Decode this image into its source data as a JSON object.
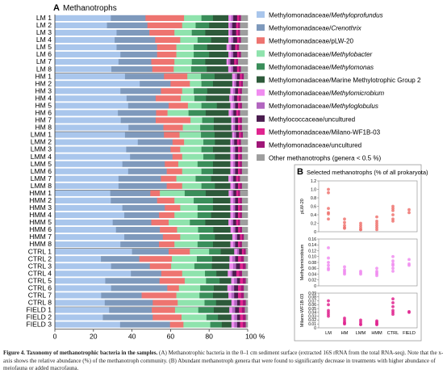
{
  "panel_a": {
    "letter": "A",
    "title": "Methanotrophs",
    "x_tick_labels": [
      "0",
      "20",
      "40",
      "60",
      "80",
      "100 %"
    ]
  },
  "panel_b": {
    "letter": "B",
    "title": "Selected methanotrophs (% of all prokaryota)"
  },
  "caption": {
    "lead": "Figure 4. Taxonomy of methanotrophic bacteria in the samples.",
    "body": " (A) Methanotrophic bacteria in the 0–1 cm sediment surface (extracted 16S rRNA from the total RNA-seq). Note that the x-axis shows the relative abundance (%) of the methanotroph community. (B) Abundant methanotroph genera that were found to significantly decrease in treatments with higher abundance of meiofauna or added macrofauna."
  },
  "colors": [
    "#a9c6ec",
    "#7e99bc",
    "#ee7470",
    "#8fe3ad",
    "#3a8e5a",
    "#2d5a3a",
    "#f08cf0",
    "#b266c0",
    "#4a1c4e",
    "#e0248f",
    "#a01678",
    "#9e9e9e"
  ],
  "chart_data": [
    {
      "type": "bar",
      "orientation": "horizontal",
      "stacked": true,
      "title": "Methanotrophs",
      "xlim": [
        0,
        100
      ],
      "x_unit": "%",
      "categories": [
        "LM 1",
        "LM 2",
        "LM 3",
        "LM 4",
        "LM 5",
        "LM 6",
        "LM 7",
        "LM 8",
        "HM 1",
        "HM 2",
        "HM 3",
        "HM 4",
        "HM 5",
        "HM 6",
        "HM 7",
        "HM 8",
        "LMM 1",
        "LMM 2",
        "LMM 3",
        "LMM 4",
        "LMM 5",
        "LMM 6",
        "LMM 7",
        "LMM 8",
        "HMM 1",
        "HMM 2",
        "HMM 3",
        "HMM 4",
        "HMM 5",
        "HMM 6",
        "HMM 7",
        "HMM 8",
        "CTRL 1",
        "CTRL 2",
        "CTRL 3",
        "CTRL 4",
        "CTRL 5",
        "CTRL 6",
        "CTRL 7",
        "CTRL 8",
        "FIELD 1",
        "FIELD 2",
        "FIELD 3"
      ],
      "legend_position": "right",
      "series": [
        {
          "name": "Methylomonadaceae/",
          "italic": "Methyloprofundus",
          "values": [
            29,
            27,
            32,
            31,
            32,
            34,
            33,
            29,
            36,
            44,
            34,
            37,
            38,
            33,
            34,
            38,
            36,
            43,
            37,
            39,
            35,
            38,
            33,
            33,
            29,
            29,
            35,
            36,
            30,
            32,
            36,
            34,
            40,
            24,
            29,
            40,
            26,
            29,
            24,
            26,
            28,
            25,
            34
          ]
        },
        {
          "name": "Methylomonadaceae/",
          "italic": "Crenothrix",
          "values": [
            18,
            21,
            17,
            21,
            21,
            19,
            17,
            21,
            20,
            16,
            21,
            15,
            21,
            20,
            18,
            18,
            20,
            18,
            23,
            22,
            22,
            20,
            22,
            25,
            21,
            24,
            22,
            18,
            20,
            23,
            20,
            20,
            19,
            20,
            20,
            16,
            28,
            29,
            21,
            25,
            22,
            26,
            26
          ]
        },
        {
          "name": "Methylomonadaceae/pLW-20",
          "italic": "",
          "values": [
            20,
            18,
            13,
            13,
            10,
            10,
            12,
            11,
            12,
            10,
            11,
            13,
            10,
            6,
            18,
            10,
            8,
            6,
            5,
            5,
            7,
            8,
            8,
            8,
            5,
            9,
            8,
            8,
            9,
            9,
            9,
            8,
            11,
            17,
            11,
            11,
            13,
            6,
            18,
            13,
            12,
            15,
            7
          ]
        },
        {
          "name": "Methylomonadaceae/",
          "italic": "Methylobacter",
          "values": [
            9,
            7,
            9,
            9,
            9,
            9,
            9,
            9,
            7,
            6,
            6,
            7,
            7,
            11,
            6,
            9,
            11,
            10,
            11,
            11,
            10,
            10,
            10,
            10,
            13,
            10,
            9,
            12,
            11,
            11,
            10,
            12,
            10,
            13,
            12,
            12,
            11,
            11,
            12,
            14,
            12,
            13,
            14
          ]
        },
        {
          "name": "Methylomonadaceae/",
          "italic": "Methylomonas",
          "values": [
            6,
            7,
            7,
            7,
            7,
            8,
            7,
            8,
            7,
            6,
            7,
            6,
            8,
            9,
            6,
            7,
            7,
            6,
            6,
            6,
            8,
            6,
            8,
            7,
            11,
            10,
            8,
            7,
            8,
            8,
            8,
            8,
            6,
            8,
            9,
            6,
            7,
            7,
            7,
            6,
            8,
            6,
            6
          ]
        },
        {
          "name": "Methylomonadaceae/Marine Methylotrophic Group 2",
          "italic": "",
          "values": [
            8,
            10,
            12,
            9,
            10,
            10,
            11,
            11,
            9,
            10,
            12,
            12,
            7,
            12,
            9,
            9,
            9,
            8,
            9,
            8,
            9,
            9,
            9,
            8,
            12,
            9,
            9,
            10,
            12,
            9,
            9,
            9,
            7,
            9,
            9,
            6,
            6,
            7,
            8,
            8,
            8,
            7,
            5
          ]
        },
        {
          "name": "Methylomonadaceae/",
          "italic": "Methylomicrobium",
          "values": [
            1.5,
            1,
            1,
            1.5,
            1.5,
            1.5,
            1,
            1.5,
            1.5,
            1,
            1.5,
            1.5,
            1.5,
            1.5,
            1,
            1,
            1,
            1,
            1.5,
            1.5,
            1.5,
            1.5,
            1.5,
            1.5,
            1.5,
            1.5,
            1.5,
            1.5,
            1.5,
            1.5,
            1.5,
            1.5,
            1.5,
            1.5,
            2,
            1.5,
            1.5,
            2,
            1.5,
            1.5,
            1.5,
            1.5,
            1.5
          ]
        },
        {
          "name": "Methylomonadaceae/",
          "italic": "Methyloglobulus",
          "values": [
            1,
            1,
            1,
            1,
            1,
            1,
            1,
            1,
            1,
            1,
            1,
            1,
            1,
            1,
            1,
            1,
            1,
            1,
            1,
            1,
            1,
            1,
            1,
            1,
            1,
            1,
            1,
            1,
            1,
            1,
            1,
            1,
            1,
            1.5,
            1.5,
            1,
            1.5,
            1.5,
            1.5,
            1.5,
            1.5,
            1.5,
            1.5
          ]
        },
        {
          "name": "Methylococcaceae/uncultured",
          "italic": "",
          "values": [
            2,
            2,
            2,
            2,
            2,
            2,
            2,
            2,
            1.5,
            1.5,
            1.5,
            1.5,
            1.5,
            1.5,
            1.5,
            1.5,
            1.5,
            1.5,
            1.5,
            1.5,
            1.5,
            1.5,
            1.5,
            1.5,
            1.5,
            1.5,
            1.5,
            1.5,
            1.5,
            1.5,
            1.5,
            1.5,
            1.5,
            1.5,
            2,
            2,
            1.5,
            2,
            2,
            1.5,
            2,
            1.5,
            1.5
          ]
        },
        {
          "name": "Methylomonadaceae/Milano-WF1B-03",
          "italic": "",
          "values": [
            1,
            1,
            1,
            1,
            1,
            1,
            1,
            1,
            1,
            1,
            1,
            1,
            1,
            1,
            1,
            1,
            1,
            1,
            1,
            1,
            1,
            1,
            1,
            1,
            1,
            1,
            1,
            1,
            1,
            1,
            1,
            1,
            1,
            1.5,
            1.5,
            1.5,
            1.5,
            1.5,
            1.5,
            1.5,
            1.5,
            1.5,
            1.5
          ]
        },
        {
          "name": "Methylomonadaceae/uncultured",
          "italic": "",
          "values": [
            1,
            1,
            1,
            1,
            1,
            1,
            1,
            1,
            1,
            1,
            1,
            1,
            1,
            1,
            1,
            1,
            1,
            1,
            1,
            1,
            1,
            1,
            1,
            1,
            1,
            1,
            1,
            1,
            1,
            1,
            1,
            1,
            1,
            1.5,
            1.5,
            1.5,
            1.5,
            1.5,
            1.5,
            1.5,
            1.5,
            1.5,
            1.5
          ]
        },
        {
          "name": "Other methanotrophs (genera < 0.5 %)",
          "italic": "",
          "values": [
            3.5,
            4,
            4,
            3.5,
            4.5,
            3.5,
            5,
            3.5,
            2,
            2.5,
            3,
            3.5,
            3,
            4,
            3,
            3,
            2.5,
            3.5,
            3,
            3,
            3,
            3,
            4,
            3,
            4,
            3,
            3,
            3,
            4,
            3,
            2,
            3,
            1,
            2,
            1,
            3,
            1,
            2,
            2,
            1,
            1.5,
            1,
            1
          ]
        }
      ]
    },
    {
      "type": "scatter",
      "title": "pLW-20",
      "ylabel": "pLW-20",
      "ylim": [
        0,
        1.2
      ],
      "y_ticks": [
        "0",
        "0.2",
        "0.4",
        "0.6",
        "0.8",
        "1.0",
        "1.2"
      ],
      "categories": [
        "LM",
        "HM",
        "LMM",
        "HMM",
        "CTRL",
        "FIELD"
      ],
      "points": [
        [
          1.0,
          0.92,
          0.55,
          0.45,
          0.42,
          0.3
        ],
        [
          0.3,
          0.22,
          0.15,
          0.1,
          0.08
        ],
        [
          0.2,
          0.15,
          0.1,
          0.05,
          0.05
        ],
        [
          0.35,
          0.25,
          0.2,
          0.15,
          0.1,
          0.05
        ],
        [
          0.6,
          0.55,
          0.5,
          0.4,
          0.3,
          0.25
        ],
        [
          0.52,
          0.45
        ]
      ]
    },
    {
      "type": "scatter",
      "title": "Methylomicrobium",
      "ylabel": "Methylomicrobium",
      "ylim": [
        0,
        0.16
      ],
      "y_ticks": [
        "0",
        "0.02",
        "0.04",
        "0.06",
        "0.08",
        "0.10",
        "0.12",
        "0.14",
        "0.16"
      ],
      "categories": [
        "LM",
        "HM",
        "LMM",
        "HMM",
        "CTRL",
        "FIELD"
      ],
      "points": [
        [
          0.13,
          0.095,
          0.08,
          0.07,
          0.06,
          0.055
        ],
        [
          0.065,
          0.055,
          0.05,
          0.045,
          0.04
        ],
        [
          0.05,
          0.045,
          0.04
        ],
        [
          0.06,
          0.05,
          0.045,
          0.04,
          0.035
        ],
        [
          0.1,
          0.085,
          0.075,
          0.07,
          0.06,
          0.05
        ],
        [
          0.09,
          0.075,
          0.07
        ]
      ]
    },
    {
      "type": "scatter",
      "title": "Milano-WF1B-03",
      "ylabel": "Milano-WF1B-03",
      "ylim": [
        0,
        0.09
      ],
      "y_ticks": [
        "0",
        "0.01",
        "0.02",
        "0.03",
        "0.04",
        "0.05",
        "0.06",
        "0.07",
        "0.08",
        "0.09"
      ],
      "categories": [
        "LM",
        "HM",
        "LMM",
        "HMM",
        "CTRL",
        "FIELD"
      ],
      "x_tick_labels": [
        "LM",
        "HM",
        "LMM",
        "HMM",
        "CTRL",
        "FIELD"
      ],
      "points": [
        [
          0.07,
          0.06,
          0.045,
          0.04,
          0.035,
          0.03
        ],
        [
          0.025,
          0.02,
          0.015,
          0.012,
          0.01
        ],
        [
          0.02,
          0.015,
          0.01,
          0.008
        ],
        [
          0.018,
          0.015,
          0.012,
          0.01,
          0.008
        ],
        [
          0.075,
          0.065,
          0.055,
          0.045,
          0.04,
          0.035
        ],
        [
          0.042,
          0.04
        ]
      ]
    }
  ]
}
